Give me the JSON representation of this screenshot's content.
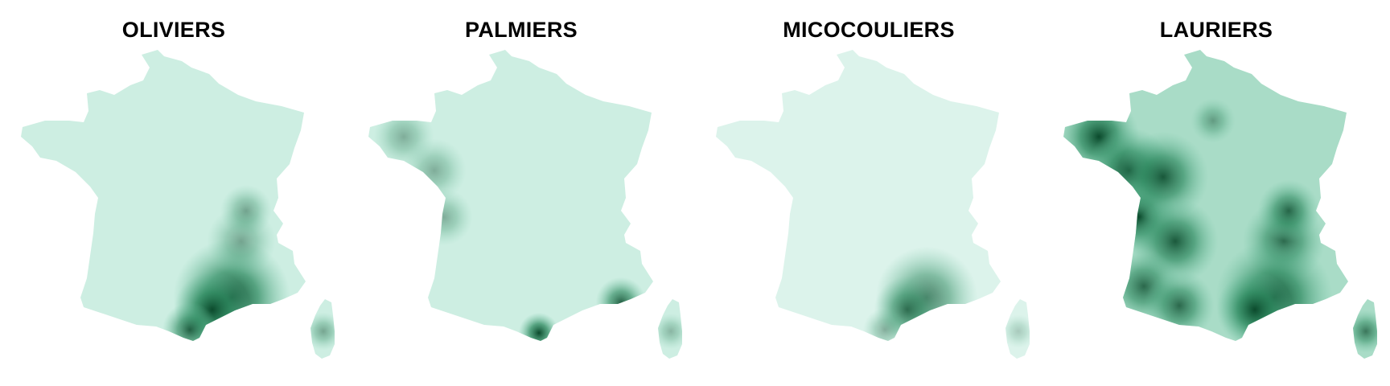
{
  "maps": [
    {
      "title": "OLIVIERS",
      "base_color": "#cdeee2",
      "hotspots": [
        {
          "region": "languedoc-provence",
          "intensity": 1.0
        },
        {
          "region": "south-coast-west",
          "intensity": 0.85
        },
        {
          "region": "rhone-valley",
          "intensity": 0.45
        },
        {
          "region": "corsica",
          "intensity": 0.45
        }
      ]
    },
    {
      "title": "PALMIERS",
      "base_color": "#cdeee2",
      "hotspots": [
        {
          "region": "roussillon",
          "intensity": 1.0
        },
        {
          "region": "cote-azur",
          "intensity": 0.85
        },
        {
          "region": "brittany-atlantic",
          "intensity": 0.4
        },
        {
          "region": "corsica",
          "intensity": 0.35
        }
      ]
    },
    {
      "title": "MICOCOULIERS",
      "base_color": "#dcf3eb",
      "hotspots": [
        {
          "region": "languedoc-provence",
          "intensity": 0.7
        },
        {
          "region": "south-coast-west",
          "intensity": 0.4
        },
        {
          "region": "corsica",
          "intensity": 0.25
        }
      ]
    },
    {
      "title": "LAURIERS",
      "base_color": "#a9dcc7",
      "hotspots": [
        {
          "region": "brittany-atlantic",
          "intensity": 1.0
        },
        {
          "region": "west-loire",
          "intensity": 0.9
        },
        {
          "region": "rhone-valley",
          "intensity": 0.8
        },
        {
          "region": "languedoc-provence",
          "intensity": 1.0
        },
        {
          "region": "south-west",
          "intensity": 0.8
        },
        {
          "region": "paris",
          "intensity": 0.45
        },
        {
          "region": "corsica",
          "intensity": 0.7
        }
      ]
    }
  ]
}
